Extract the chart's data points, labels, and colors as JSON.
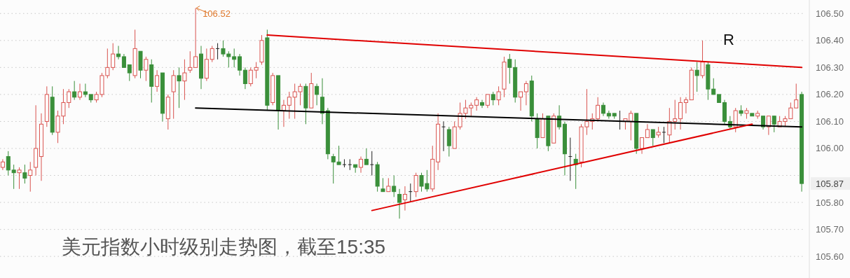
{
  "chart_data": {
    "type": "candlestick",
    "title": "美元指数小时级别走势图，截至15:35",
    "categories": [
      null,
      null,
      null,
      null,
      null,
      null,
      null,
      null,
      null,
      null,
      null,
      null,
      null,
      null,
      null,
      null,
      null,
      null,
      null,
      null,
      null,
      null,
      null,
      null,
      null,
      null,
      null,
      null,
      null,
      null,
      null,
      null,
      null,
      null,
      null,
      null,
      null,
      null,
      null,
      null,
      null,
      null,
      null,
      null,
      null,
      null,
      null,
      null,
      null,
      null,
      null,
      null,
      null,
      null,
      null,
      null,
      null,
      null,
      null,
      null,
      null,
      null,
      null,
      null,
      null,
      null,
      null,
      null,
      null,
      null,
      null,
      null,
      null,
      null,
      null,
      null,
      null,
      null,
      null,
      null,
      null,
      null,
      null,
      null,
      null,
      null,
      null,
      null,
      null,
      null,
      null,
      null,
      null,
      null,
      null,
      null,
      null,
      null,
      null,
      null,
      null,
      null,
      null,
      null,
      null,
      null,
      null,
      null,
      null,
      null,
      null,
      null,
      null,
      null,
      null,
      null,
      null,
      null,
      null,
      null,
      null,
      null,
      null,
      null,
      null,
      null,
      null,
      null,
      null,
      null,
      null,
      null,
      null,
      null,
      null,
      null,
      null,
      null,
      null,
      null,
      null,
      null,
      null,
      null,
      null,
      null
    ],
    "ohlc": [
      [
        105.93,
        105.96,
        105.92,
        105.95
      ],
      [
        105.97,
        105.99,
        105.9,
        105.92
      ],
      [
        105.92,
        105.94,
        105.85,
        105.91
      ],
      [
        105.91,
        105.93,
        105.85,
        105.92
      ],
      [
        105.91,
        105.94,
        105.87,
        105.89
      ],
      [
        105.9,
        105.95,
        105.84,
        105.92
      ],
      [
        105.93,
        106.16,
        105.9,
        106.0
      ],
      [
        105.97,
        106.13,
        105.88,
        106.09
      ],
      [
        106.1,
        106.23,
        106.08,
        106.2
      ],
      [
        106.19,
        106.23,
        106.05,
        106.06
      ],
      [
        106.06,
        106.14,
        106.02,
        106.12
      ],
      [
        106.12,
        106.22,
        106.09,
        106.17
      ],
      [
        106.17,
        106.22,
        106.15,
        106.21
      ],
      [
        106.21,
        106.25,
        106.18,
        106.19
      ],
      [
        106.19,
        106.24,
        106.18,
        106.21
      ],
      [
        106.21,
        106.24,
        106.19,
        106.2
      ],
      [
        106.2,
        106.2,
        106.17,
        106.18
      ],
      [
        106.18,
        106.21,
        106.17,
        106.2
      ],
      [
        106.2,
        106.28,
        106.19,
        106.27
      ],
      [
        106.27,
        106.37,
        106.26,
        106.3
      ],
      [
        106.3,
        106.39,
        106.29,
        106.35
      ],
      [
        106.35,
        106.38,
        106.33,
        106.34
      ],
      [
        106.34,
        106.35,
        106.3,
        106.3
      ],
      [
        106.31,
        106.31,
        106.25,
        106.28
      ],
      [
        106.27,
        106.44,
        106.26,
        106.37
      ],
      [
        106.36,
        106.36,
        106.26,
        106.29
      ],
      [
        106.29,
        106.34,
        106.25,
        106.33
      ],
      [
        106.31,
        106.33,
        106.17,
        106.23
      ],
      [
        106.23,
        106.29,
        106.21,
        106.27
      ],
      [
        106.28,
        106.28,
        106.1,
        106.13
      ],
      [
        106.11,
        106.2,
        106.07,
        106.19
      ],
      [
        106.21,
        106.29,
        106.11,
        106.27
      ],
      [
        106.27,
        106.3,
        106.15,
        106.25
      ],
      [
        106.25,
        106.33,
        106.18,
        106.28
      ],
      [
        106.29,
        106.36,
        106.28,
        106.3
      ],
      [
        106.3,
        106.52,
        106.3,
        106.34
      ],
      [
        106.35,
        106.38,
        106.22,
        106.26
      ],
      [
        106.26,
        106.37,
        106.25,
        106.33
      ],
      [
        106.33,
        106.38,
        106.32,
        106.37
      ],
      [
        106.37,
        106.39,
        106.33,
        106.37
      ],
      [
        106.37,
        106.4,
        106.34,
        106.35
      ],
      [
        106.35,
        106.36,
        106.3,
        106.34
      ],
      [
        106.34,
        106.37,
        106.3,
        106.33
      ],
      [
        106.34,
        106.35,
        106.27,
        106.29
      ],
      [
        106.29,
        106.3,
        106.22,
        106.24
      ],
      [
        106.24,
        106.3,
        106.23,
        106.29
      ],
      [
        106.29,
        106.32,
        106.26,
        106.3
      ],
      [
        106.32,
        106.42,
        106.31,
        106.4
      ],
      [
        106.41,
        106.44,
        106.14,
        106.16
      ],
      [
        106.17,
        106.28,
        106.16,
        106.27
      ],
      [
        106.27,
        106.27,
        106.07,
        106.14
      ],
      [
        106.14,
        106.18,
        106.08,
        106.16
      ],
      [
        106.16,
        106.21,
        106.11,
        106.19
      ],
      [
        106.19,
        106.24,
        106.11,
        106.21
      ],
      [
        106.21,
        106.24,
        106.16,
        106.23
      ],
      [
        106.23,
        106.24,
        106.09,
        106.15
      ],
      [
        106.15,
        106.28,
        106.15,
        106.24
      ],
      [
        106.23,
        106.24,
        106.16,
        106.2
      ],
      [
        106.19,
        106.26,
        106.09,
        106.13
      ],
      [
        106.14,
        106.15,
        105.96,
        105.98
      ],
      [
        105.97,
        105.98,
        105.87,
        105.95
      ],
      [
        105.95,
        106.01,
        105.94,
        105.94
      ],
      [
        105.94,
        105.96,
        105.93,
        105.94
      ],
      [
        105.94,
        105.96,
        105.92,
        105.94
      ],
      [
        105.94,
        105.94,
        105.91,
        105.93
      ],
      [
        105.93,
        105.97,
        105.91,
        105.96
      ],
      [
        105.96,
        106.0,
        105.94,
        105.94
      ],
      [
        105.94,
        105.99,
        105.9,
        105.94
      ],
      [
        105.94,
        105.95,
        105.84,
        105.86
      ],
      [
        105.85,
        105.89,
        105.84,
        105.84
      ],
      [
        105.84,
        105.89,
        105.84,
        105.86
      ],
      [
        105.86,
        105.9,
        105.82,
        105.84
      ],
      [
        105.83,
        105.85,
        105.74,
        105.8
      ],
      [
        105.81,
        105.86,
        105.77,
        105.83
      ],
      [
        105.84,
        105.87,
        105.8,
        105.84
      ],
      [
        105.84,
        105.91,
        105.82,
        105.9
      ],
      [
        105.9,
        105.91,
        105.84,
        105.86
      ],
      [
        105.87,
        105.92,
        105.84,
        105.85
      ],
      [
        105.85,
        106.01,
        105.84,
        105.96
      ],
      [
        105.95,
        106.13,
        105.92,
        106.09
      ],
      [
        106.08,
        106.1,
        105.99,
        106.08
      ],
      [
        106.07,
        106.08,
        105.97,
        106.01
      ],
      [
        106.0,
        106.1,
        106.0,
        106.08
      ],
      [
        106.08,
        106.17,
        106.07,
        106.13
      ],
      [
        106.13,
        106.18,
        106.11,
        106.15
      ],
      [
        106.15,
        106.17,
        106.12,
        106.16
      ],
      [
        106.16,
        106.19,
        106.14,
        106.18
      ],
      [
        106.17,
        106.18,
        106.15,
        106.16
      ],
      [
        106.16,
        106.2,
        106.15,
        106.2
      ],
      [
        106.2,
        106.21,
        106.16,
        106.18
      ],
      [
        106.18,
        106.23,
        106.16,
        106.21
      ],
      [
        106.22,
        106.34,
        106.19,
        106.32
      ],
      [
        106.33,
        106.35,
        106.24,
        106.3
      ],
      [
        106.3,
        106.33,
        106.17,
        106.19
      ],
      [
        106.19,
        106.21,
        106.14,
        106.21
      ],
      [
        106.21,
        106.25,
        106.16,
        106.24
      ],
      [
        106.25,
        106.27,
        106.1,
        106.12
      ],
      [
        106.11,
        106.13,
        106.0,
        106.04
      ],
      [
        106.04,
        106.13,
        106.04,
        106.11
      ],
      [
        106.12,
        106.12,
        105.99,
        106.01
      ],
      [
        106.02,
        106.13,
        106.02,
        106.12
      ],
      [
        106.12,
        106.16,
        106.07,
        106.08
      ],
      [
        106.09,
        106.1,
        105.9,
        105.98
      ],
      [
        105.97,
        106.04,
        105.88,
        105.97
      ],
      [
        105.96,
        105.98,
        105.85,
        105.94
      ],
      [
        105.95,
        106.09,
        105.93,
        106.08
      ],
      [
        106.08,
        106.22,
        106.05,
        106.1
      ],
      [
        106.1,
        106.13,
        106.07,
        106.11
      ],
      [
        106.11,
        106.19,
        106.1,
        106.16
      ],
      [
        106.16,
        106.17,
        106.12,
        106.13
      ],
      [
        106.13,
        106.14,
        106.11,
        106.12
      ],
      [
        106.13,
        106.13,
        106.11,
        106.12
      ],
      [
        106.1,
        106.14,
        106.07,
        106.1
      ],
      [
        106.1,
        106.11,
        106.07,
        106.11
      ],
      [
        106.1,
        106.14,
        106.03,
        106.13
      ],
      [
        106.13,
        106.13,
        105.98,
        106.0
      ],
      [
        106.0,
        106.04,
        105.98,
        106.04
      ],
      [
        106.04,
        106.09,
        106.04,
        106.07
      ],
      [
        106.07,
        106.07,
        106.01,
        106.04
      ],
      [
        106.05,
        106.08,
        106.04,
        106.06
      ],
      [
        106.06,
        106.08,
        106.02,
        106.06
      ],
      [
        106.05,
        106.15,
        106.02,
        106.1
      ],
      [
        106.1,
        106.18,
        106.07,
        106.11
      ],
      [
        106.11,
        106.19,
        106.07,
        106.17
      ],
      [
        106.17,
        106.19,
        106.13,
        106.18
      ],
      [
        106.18,
        106.3,
        106.18,
        106.29
      ],
      [
        106.29,
        106.32,
        106.21,
        106.27
      ],
      [
        106.27,
        106.4,
        106.26,
        106.32
      ],
      [
        106.31,
        106.32,
        106.18,
        106.22
      ],
      [
        106.22,
        106.26,
        106.2,
        106.2
      ],
      [
        106.2,
        106.2,
        106.17,
        106.17
      ],
      [
        106.17,
        106.18,
        106.09,
        106.1
      ],
      [
        106.1,
        106.12,
        106.07,
        106.08
      ],
      [
        106.08,
        106.15,
        106.06,
        106.14
      ],
      [
        106.14,
        106.16,
        106.12,
        106.13
      ],
      [
        106.13,
        106.15,
        106.11,
        106.14
      ],
      [
        106.13,
        106.13,
        106.12,
        106.12
      ],
      [
        106.12,
        106.14,
        106.11,
        106.13
      ],
      [
        106.12,
        106.12,
        106.07,
        106.08
      ],
      [
        106.08,
        106.12,
        106.05,
        106.12
      ],
      [
        106.12,
        106.12,
        106.06,
        106.09
      ],
      [
        106.08,
        106.12,
        106.08,
        106.1
      ],
      [
        106.1,
        106.12,
        106.08,
        106.11
      ],
      [
        106.11,
        106.17,
        106.11,
        106.15
      ],
      [
        106.15,
        106.24,
        106.15,
        106.18
      ],
      [
        106.2,
        106.21,
        105.84,
        105.87
      ]
    ],
    "series": [
      {
        "type": "line",
        "color": "#e00000",
        "values": [
          null,
          null,
          null,
          null,
          null,
          null,
          null,
          null,
          null,
          null,
          null,
          null,
          null,
          null,
          null,
          null,
          null,
          null,
          null,
          null,
          null,
          null,
          null,
          null,
          null,
          null,
          null,
          null,
          null,
          null,
          null,
          null,
          null,
          null,
          null,
          null,
          null,
          null,
          null,
          null,
          null,
          null,
          null,
          null,
          null,
          null,
          null,
          null,
          106.42,
          null,
          null,
          null,
          null,
          null,
          null,
          null,
          null,
          null,
          null,
          null,
          null,
          null,
          null,
          null,
          null,
          null,
          null,
          null,
          null,
          null,
          null,
          null,
          null,
          null,
          null,
          null,
          null,
          null,
          null,
          null,
          null,
          null,
          null,
          null,
          null,
          null,
          null,
          null,
          null,
          null,
          null,
          null,
          null,
          null,
          null,
          null,
          null,
          null,
          null,
          null,
          null,
          null,
          null,
          null,
          null,
          null,
          null,
          null,
          null,
          null,
          null,
          null,
          null,
          null,
          null,
          null,
          null,
          null,
          null,
          null,
          null,
          null,
          null,
          null,
          null,
          null,
          null,
          null,
          null,
          null,
          null,
          null,
          null,
          null,
          null,
          null,
          null,
          null,
          null,
          null,
          null,
          null,
          null,
          null,
          null,
          106.3
        ]
      },
      {
        "type": "line",
        "color": "#000000",
        "values": [
          null,
          null,
          null,
          null,
          null,
          null,
          null,
          null,
          null,
          null,
          null,
          null,
          null,
          null,
          null,
          null,
          null,
          null,
          null,
          null,
          null,
          null,
          null,
          null,
          null,
          null,
          null,
          null,
          null,
          null,
          null,
          null,
          null,
          null,
          null,
          106.15,
          null,
          null,
          null,
          null,
          null,
          null,
          null,
          null,
          null,
          null,
          null,
          null,
          null,
          null,
          null,
          null,
          null,
          null,
          null,
          null,
          null,
          null,
          null,
          null,
          null,
          null,
          null,
          null,
          null,
          null,
          null,
          null,
          null,
          null,
          null,
          null,
          null,
          null,
          null,
          null,
          null,
          null,
          null,
          null,
          null,
          null,
          null,
          null,
          null,
          null,
          null,
          null,
          null,
          null,
          null,
          null,
          null,
          null,
          null,
          null,
          null,
          null,
          null,
          null,
          null,
          null,
          null,
          null,
          null,
          null,
          null,
          null,
          null,
          null,
          null,
          null,
          null,
          null,
          null,
          null,
          null,
          null,
          null,
          null,
          null,
          null,
          null,
          null,
          null,
          null,
          null,
          null,
          null,
          null,
          null,
          null,
          null,
          null,
          null,
          null,
          null,
          null,
          null,
          null,
          null,
          null,
          null,
          null,
          null,
          106.08
        ]
      },
      {
        "type": "line",
        "color": "#e00000",
        "values": [
          null,
          null,
          null,
          null,
          null,
          null,
          null,
          null,
          null,
          null,
          null,
          null,
          null,
          null,
          null,
          null,
          null,
          null,
          null,
          null,
          null,
          null,
          null,
          null,
          null,
          null,
          null,
          null,
          null,
          null,
          null,
          null,
          null,
          null,
          null,
          null,
          null,
          null,
          null,
          null,
          null,
          null,
          null,
          null,
          null,
          null,
          null,
          null,
          null,
          null,
          null,
          null,
          null,
          null,
          null,
          null,
          null,
          null,
          null,
          null,
          null,
          null,
          null,
          null,
          null,
          null,
          null,
          105.77,
          null,
          null,
          null,
          null,
          null,
          null,
          null,
          null,
          null,
          null,
          null,
          null,
          null,
          null,
          null,
          null,
          null,
          null,
          null,
          null,
          null,
          null,
          null,
          null,
          null,
          null,
          null,
          null,
          null,
          null,
          null,
          null,
          null,
          null,
          null,
          null,
          null,
          null,
          null,
          null,
          null,
          null,
          null,
          null,
          null,
          null,
          null,
          null,
          null,
          null,
          null,
          null,
          null,
          null,
          null,
          null,
          null,
          null,
          null,
          null,
          null,
          null,
          null,
          null,
          null,
          null,
          null,
          null,
          106.09,
          null,
          null,
          null,
          null,
          null,
          null,
          null,
          null,
          null
        ]
      }
    ],
    "ylim": [
      105.52,
      106.55
    ],
    "yticks": [
      {
        "value": 105.6,
        "label": "105.60"
      },
      {
        "value": 105.7,
        "label": "105.70"
      },
      {
        "value": 105.8,
        "label": "105.80"
      },
      {
        "value": 105.9,
        "label": null
      },
      {
        "value": 106.0,
        "label": "106.00"
      },
      {
        "value": 106.1,
        "label": "106.10"
      },
      {
        "value": 106.2,
        "label": "106.20"
      },
      {
        "value": 106.3,
        "label": "106.30"
      },
      {
        "value": 106.4,
        "label": "106.40"
      },
      {
        "value": 106.5,
        "label": "106.50"
      }
    ],
    "grid": "y",
    "annotations": [
      "106.52",
      "R",
      "105.87"
    ]
  }
}
